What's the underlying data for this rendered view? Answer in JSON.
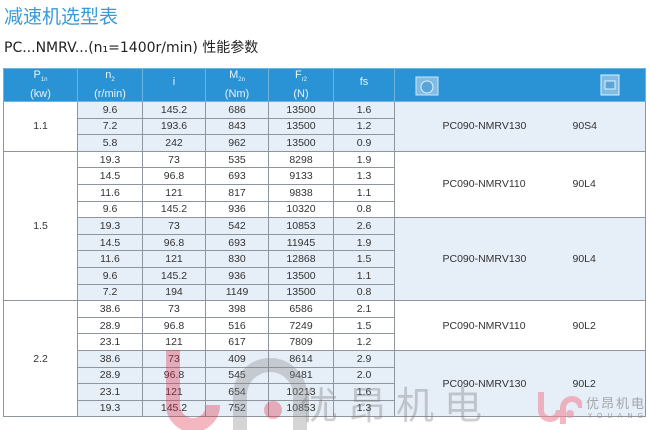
{
  "title": "减速机选型表",
  "subtitle": "PC...NMRV...(n₁=1400r/min) 性能参数",
  "headers": [
    [
      "P",
      "1n",
      "(kw)"
    ],
    [
      "n",
      "2",
      "(r/min)"
    ],
    [
      "i",
      "",
      ""
    ],
    [
      "M",
      "2n",
      "(Nm)"
    ],
    [
      "F",
      "r2",
      "(N)"
    ],
    [
      "fs",
      "",
      ""
    ]
  ],
  "header_icons": [
    "worm-gearbox-icon",
    "motor-icon"
  ],
  "groups": [
    {
      "power": "1.1",
      "subgroups": [
        {
          "model": "PC090-NMRV130",
          "motor": "90S4",
          "shade": "b",
          "rows": [
            [
              "9.6",
              "145.2",
              "686",
              "13500",
              "1.6"
            ],
            [
              "7.2",
              "193.6",
              "843",
              "13500",
              "1.2"
            ],
            [
              "5.8",
              "242",
              "962",
              "13500",
              "0.9"
            ]
          ]
        }
      ]
    },
    {
      "power": "1.5",
      "subgroups": [
        {
          "model": "PC090-NMRV110",
          "motor": "90L4",
          "shade": "w",
          "rows": [
            [
              "19.3",
              "73",
              "535",
              "8298",
              "1.9"
            ],
            [
              "14.5",
              "96.8",
              "693",
              "9133",
              "1.3"
            ],
            [
              "11.6",
              "121",
              "817",
              "9838",
              "1.1"
            ],
            [
              "9.6",
              "145.2",
              "936",
              "10320",
              "0.8"
            ]
          ]
        },
        {
          "model": "PC090-NMRV130",
          "motor": "90L4",
          "shade": "b",
          "rows": [
            [
              "19.3",
              "73",
              "542",
              "10853",
              "2.6"
            ],
            [
              "14.5",
              "96.8",
              "693",
              "11945",
              "1.9"
            ],
            [
              "11.6",
              "121",
              "830",
              "12868",
              "1.5"
            ],
            [
              "9.6",
              "145.2",
              "936",
              "13500",
              "1.1"
            ],
            [
              "7.2",
              "194",
              "1149",
              "13500",
              "0.8"
            ]
          ]
        }
      ]
    },
    {
      "power": "2.2",
      "subgroups": [
        {
          "model": "PC090-NMRV110",
          "motor": "90L2",
          "shade": "w",
          "rows": [
            [
              "38.6",
              "73",
              "398",
              "6586",
              "2.1"
            ],
            [
              "28.9",
              "96.8",
              "516",
              "7249",
              "1.5"
            ],
            [
              "23.1",
              "121",
              "617",
              "7809",
              "1.2"
            ]
          ]
        },
        {
          "model": "PC090-NMRV130",
          "motor": "90L2",
          "shade": "b",
          "rows": [
            [
              "38.6",
              "73",
              "409",
              "8614",
              "2.9"
            ],
            [
              "28.9",
              "96.8",
              "545",
              "9481",
              "2.0"
            ],
            [
              "23.1",
              "121",
              "654",
              "10213",
              "1.6"
            ],
            [
              "19.3",
              "145.2",
              "752",
              "10853",
              "1.3"
            ]
          ]
        }
      ]
    }
  ],
  "watermark": {
    "cn": "优昂机电",
    "en": "YOUANG"
  },
  "colors": {
    "header": "#2a93d5",
    "title": "#3a9ad6",
    "shade": "#e6eef7",
    "logo": "#f08a9a"
  }
}
